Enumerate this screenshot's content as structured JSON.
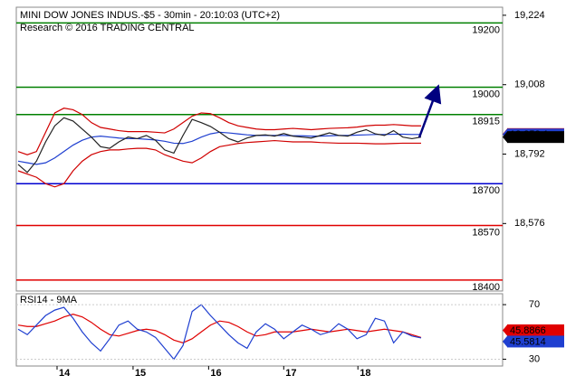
{
  "chart_data": {
    "type": "line",
    "title": "MINI DOW JONES INDUS.-$5 - 30min - 20:10:03 (UTC+2)",
    "subtitle": "Research © 2016 TRADING CENTRAL",
    "x": [
      0,
      1,
      2,
      3,
      4,
      5,
      6,
      7,
      8,
      9,
      10,
      11,
      12,
      13,
      14,
      15,
      16,
      17,
      18,
      19,
      20,
      21,
      22,
      23,
      24,
      25,
      26,
      27,
      28,
      29,
      30,
      31,
      32,
      33,
      34,
      35,
      36,
      37,
      38,
      39,
      40,
      41,
      42,
      43,
      44
    ],
    "xlim": [
      -0.2,
      52.9
    ],
    "xticks": [
      {
        "value": 4.25,
        "label": "14"
      },
      {
        "value": 12.55,
        "label": "15"
      },
      {
        "value": 20.8,
        "label": "16"
      },
      {
        "value": 29.0,
        "label": "17"
      },
      {
        "value": 37.1,
        "label": "18"
      }
    ],
    "ylim": [
      18366,
      19249
    ],
    "yticks": [
      {
        "value": 19224,
        "label": "19,224"
      },
      {
        "value": 19008,
        "label": "19,008"
      },
      {
        "value": 18792,
        "label": "18,792"
      },
      {
        "value": 18576,
        "label": "18,576"
      }
    ],
    "series": [
      {
        "color": "#d00000",
        "values": [
          18800,
          18790,
          18800,
          18860,
          18920,
          18935,
          18930,
          18915,
          18890,
          18875,
          18870,
          18865,
          18862,
          18862,
          18862,
          18860,
          18858,
          18870,
          18890,
          18910,
          18920,
          18918,
          18905,
          18890,
          18880,
          18875,
          18870,
          18868,
          18868,
          18870,
          18872,
          18870,
          18868,
          18870,
          18872,
          18873,
          18874,
          18876,
          18880,
          18882,
          18882,
          18884,
          18882,
          18880,
          18880
        ]
      },
      {
        "color": "#d00000",
        "values": [
          18740,
          18730,
          18720,
          18700,
          18690,
          18700,
          18740,
          18770,
          18790,
          18800,
          18805,
          18805,
          18808,
          18810,
          18810,
          18805,
          18790,
          18780,
          18770,
          18765,
          18780,
          18800,
          18815,
          18820,
          18825,
          18828,
          18830,
          18832,
          18834,
          18832,
          18830,
          18830,
          18830,
          18828,
          18827,
          18826,
          18826,
          18826,
          18825,
          18824,
          18824,
          18825,
          18826,
          18826,
          18826
        ]
      },
      {
        "color": "#1f3fd0",
        "values": [
          18770,
          18765,
          18760,
          18765,
          18780,
          18800,
          18820,
          18835,
          18845,
          18848,
          18845,
          18842,
          18840,
          18840,
          18838,
          18836,
          18832,
          18826,
          18825,
          18832,
          18845,
          18855,
          18860,
          18858,
          18855,
          18852,
          18850,
          18850,
          18850,
          18850,
          18849,
          18849,
          18848,
          18848,
          18849,
          18850,
          18850,
          18851,
          18852,
          18853,
          18853,
          18854,
          18854,
          18853,
          18853
        ]
      },
      {
        "color": "#222222",
        "values": [
          18760,
          18735,
          18770,
          18830,
          18880,
          18905,
          18895,
          18870,
          18845,
          18815,
          18810,
          18830,
          18845,
          18840,
          18850,
          18835,
          18805,
          18795,
          18850,
          18900,
          18890,
          18878,
          18860,
          18840,
          18830,
          18842,
          18850,
          18852,
          18848,
          18856,
          18848,
          18845,
          18842,
          18850,
          18858,
          18850,
          18848,
          18860,
          18868,
          18855,
          18850,
          18865,
          18845,
          18840,
          18845
        ]
      }
    ],
    "levels": [
      {
        "value": 19200,
        "color": "#008000"
      },
      {
        "value": 19000,
        "color": "#008000"
      },
      {
        "value": 18915,
        "color": "#008000"
      },
      {
        "value": 18700,
        "color": "#0000d0"
      },
      {
        "value": 18570,
        "color": "#e00000"
      },
      {
        "value": 18400,
        "color": "#e00000"
      }
    ],
    "last_values": [
      {
        "value": 18854.4,
        "label": "18,854.4",
        "color": "#e00000"
      },
      {
        "value": 18853.1,
        "label": "18,853.1",
        "color": "#1f3fd0"
      },
      {
        "value": 18845,
        "label": "18,845",
        "color": "#000000"
      }
    ],
    "rsi": {
      "label": "RSI14 - 9MA",
      "ylim": [
        25,
        78
      ],
      "yticks": [
        70,
        30
      ],
      "series": [
        {
          "color": "#e00000",
          "values": [
            55,
            54,
            54,
            56,
            58,
            61,
            63,
            61,
            57,
            52,
            48,
            47,
            49,
            51,
            52,
            51,
            48,
            44,
            42,
            45,
            50,
            55,
            58,
            57,
            54,
            50,
            47,
            48,
            50,
            50,
            50,
            51,
            52,
            51,
            50,
            51,
            52,
            51,
            50,
            51,
            52,
            51,
            50,
            48,
            45.8866
          ]
        },
        {
          "color": "#1f3fd0",
          "values": [
            52,
            48,
            55,
            62,
            66,
            68,
            60,
            50,
            42,
            36,
            45,
            55,
            58,
            52,
            50,
            46,
            38,
            30,
            40,
            65,
            70,
            62,
            55,
            48,
            42,
            38,
            50,
            56,
            52,
            45,
            50,
            55,
            52,
            48,
            50,
            56,
            52,
            45,
            48,
            60,
            58,
            42,
            50,
            47,
            45.5814
          ]
        }
      ],
      "last_values": [
        {
          "value": 45.8866,
          "color": "#e00000"
        },
        {
          "value": 45.5814,
          "color": "#1f3fd0"
        }
      ]
    }
  }
}
